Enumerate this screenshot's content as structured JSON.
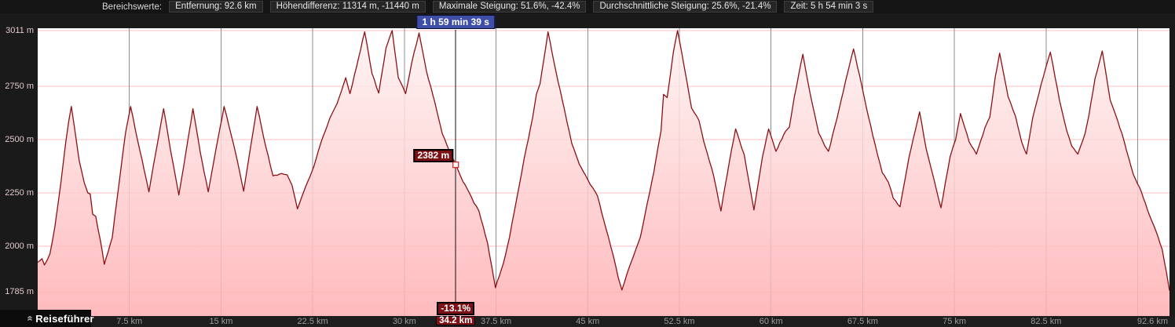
{
  "header": {
    "section_label": "Bereichswerte:",
    "metrics": [
      {
        "id": "entfernung",
        "label": "Entfernung",
        "value": "92.6 km"
      },
      {
        "id": "hoehendifferenz",
        "label": "Höhendifferenz",
        "value": "11314 m, -11440 m"
      },
      {
        "id": "maximale-steigung",
        "label": "Maximale Steigung",
        "value": "51.6%, -42.4%"
      },
      {
        "id": "durchschnittliche-steigung",
        "label": "Durchschnittliche Steigung",
        "value": "25.6%, -21.4%"
      },
      {
        "id": "zeit",
        "label": "Zeit",
        "value": "5 h 54 min 3 s"
      }
    ]
  },
  "cursor": {
    "km": 34.2,
    "elevation_m": 2382,
    "time_label": "1 h 59 min 39 s",
    "elevation_label": "2382 m",
    "gradient_label": "-13.1%",
    "distance_label": "34.2 km"
  },
  "guide_button": {
    "label": "Reiseführer"
  },
  "icons": {
    "chevron_double_up": "»"
  },
  "colors": {
    "line": "#8c1114",
    "fill_top": "#fdf3f3",
    "fill_mid": "#fed2d3",
    "fill_bottom": "#ffaeb2",
    "grid_pink": "#ffbfbf",
    "grid_gray": "#8f8f8f",
    "tooltip_blue": "#3f4fa8",
    "tag_red": "#7c1216",
    "plot_bg": "#ffffff",
    "panel_bg": "#1a1a1a",
    "axis_text": "#9c9c9c",
    "y_axis_text": "#e2c9c9",
    "cursor_marker": "#d42a2a"
  },
  "chart_data": {
    "type": "area",
    "title": "Höhenprofil",
    "xlabel": "km",
    "ylabel": "m",
    "xlim": [
      0,
      92.6
    ],
    "ylim": [
      1785,
      3011
    ],
    "grid": "horizontal pink elevation lines, vertical gray distance lines",
    "legend_position": "none",
    "y_ticks": [
      {
        "m": 3011,
        "label": "3011 m"
      },
      {
        "m": 2750,
        "label": "2750 m"
      },
      {
        "m": 2500,
        "label": "2500 m"
      },
      {
        "m": 2250,
        "label": "2250 m"
      },
      {
        "m": 2000,
        "label": "2000 m"
      },
      {
        "m": 1785,
        "label": "1785 m"
      }
    ],
    "x_ticks": [
      {
        "km": 7.5,
        "label": "7.5 km"
      },
      {
        "km": 15,
        "label": "15 km"
      },
      {
        "km": 22.5,
        "label": "22.5 km"
      },
      {
        "km": 30,
        "label": "30 km"
      },
      {
        "km": 37.5,
        "label": "37.5 km"
      },
      {
        "km": 45,
        "label": "45 km"
      },
      {
        "km": 52.5,
        "label": "52.5 km"
      },
      {
        "km": 60,
        "label": "60 km"
      },
      {
        "km": 67.5,
        "label": "67.5 km"
      },
      {
        "km": 75,
        "label": "75 km"
      },
      {
        "km": 82.5,
        "label": "82.5 km"
      },
      {
        "km": 90,
        "label": ""
      },
      {
        "km": 92.6,
        "label": "92.6 km",
        "align": "end"
      }
    ],
    "profile": [
      [
        0.0,
        1925
      ],
      [
        0.35,
        1942
      ],
      [
        0.55,
        1912
      ],
      [
        1.0,
        1965
      ],
      [
        1.4,
        2090
      ],
      [
        1.9,
        2300
      ],
      [
        2.3,
        2490
      ],
      [
        2.55,
        2590
      ],
      [
        2.75,
        2655
      ],
      [
        3.0,
        2560
      ],
      [
        3.4,
        2400
      ],
      [
        3.8,
        2300
      ],
      [
        4.1,
        2250
      ],
      [
        4.3,
        2245
      ],
      [
        4.5,
        2150
      ],
      [
        4.75,
        2140
      ],
      [
        5.1,
        2035
      ],
      [
        5.45,
        1915
      ],
      [
        6.1,
        2040
      ],
      [
        6.7,
        2315
      ],
      [
        7.2,
        2535
      ],
      [
        7.6,
        2655
      ],
      [
        8.2,
        2490
      ],
      [
        8.7,
        2360
      ],
      [
        9.1,
        2255
      ],
      [
        9.7,
        2450
      ],
      [
        10.3,
        2645
      ],
      [
        10.9,
        2440
      ],
      [
        11.55,
        2240
      ],
      [
        12.15,
        2450
      ],
      [
        12.7,
        2645
      ],
      [
        13.3,
        2440
      ],
      [
        13.95,
        2255
      ],
      [
        14.6,
        2460
      ],
      [
        15.25,
        2655
      ],
      [
        16.2,
        2435
      ],
      [
        16.85,
        2258
      ],
      [
        17.4,
        2460
      ],
      [
        17.95,
        2655
      ],
      [
        18.65,
        2470
      ],
      [
        19.25,
        2330
      ],
      [
        19.95,
        2341
      ],
      [
        20.4,
        2335
      ],
      [
        20.8,
        2287
      ],
      [
        21.25,
        2175
      ],
      [
        21.6,
        2230
      ],
      [
        21.9,
        2276
      ],
      [
        22.3,
        2330
      ],
      [
        22.6,
        2375
      ],
      [
        23.2,
        2490
      ],
      [
        23.9,
        2600
      ],
      [
        24.5,
        2670
      ],
      [
        25.2,
        2790
      ],
      [
        25.55,
        2715
      ],
      [
        26.1,
        2845
      ],
      [
        26.75,
        3005
      ],
      [
        27.35,
        2810
      ],
      [
        27.9,
        2718
      ],
      [
        28.5,
        2930
      ],
      [
        29.0,
        3011
      ],
      [
        29.5,
        2790
      ],
      [
        30.1,
        2715
      ],
      [
        30.6,
        2860
      ],
      [
        31.2,
        3000
      ],
      [
        31.8,
        2822
      ],
      [
        32.5,
        2672
      ],
      [
        33.1,
        2528
      ],
      [
        33.7,
        2442
      ],
      [
        34.2,
        2382
      ],
      [
        34.8,
        2302
      ],
      [
        35.3,
        2252
      ],
      [
        35.7,
        2202
      ],
      [
        36.1,
        2165
      ],
      [
        36.8,
        2016
      ],
      [
        37.15,
        1905
      ],
      [
        37.45,
        1805
      ],
      [
        38.1,
        1920
      ],
      [
        38.6,
        2042
      ],
      [
        39.2,
        2225
      ],
      [
        39.8,
        2410
      ],
      [
        40.5,
        2604
      ],
      [
        40.8,
        2712
      ],
      [
        41.1,
        2762
      ],
      [
        41.75,
        3005
      ],
      [
        42.4,
        2820
      ],
      [
        43.1,
        2640
      ],
      [
        43.7,
        2482
      ],
      [
        44.3,
        2386
      ],
      [
        45.0,
        2312
      ],
      [
        45.8,
        2236
      ],
      [
        46.5,
        2082
      ],
      [
        47.1,
        1955
      ],
      [
        47.5,
        1852
      ],
      [
        47.8,
        1795
      ],
      [
        48.4,
        1902
      ],
      [
        49.3,
        2042
      ],
      [
        49.7,
        2152
      ],
      [
        50.4,
        2345
      ],
      [
        51.0,
        2540
      ],
      [
        51.2,
        2712
      ],
      [
        51.5,
        2697
      ],
      [
        52.0,
        2907
      ],
      [
        52.35,
        3011
      ],
      [
        52.9,
        2840
      ],
      [
        53.5,
        2648
      ],
      [
        54.1,
        2590
      ],
      [
        54.5,
        2490
      ],
      [
        54.8,
        2432
      ],
      [
        55.3,
        2330
      ],
      [
        55.9,
        2165
      ],
      [
        56.6,
        2400
      ],
      [
        57.1,
        2550
      ],
      [
        57.8,
        2430
      ],
      [
        58.2,
        2300
      ],
      [
        58.6,
        2170
      ],
      [
        59.3,
        2420
      ],
      [
        59.8,
        2550
      ],
      [
        60.15,
        2490
      ],
      [
        60.4,
        2445
      ],
      [
        61.2,
        2540
      ],
      [
        61.5,
        2558
      ],
      [
        61.9,
        2700
      ],
      [
        62.6,
        2900
      ],
      [
        63.2,
        2715
      ],
      [
        63.9,
        2530
      ],
      [
        64.4,
        2470
      ],
      [
        64.7,
        2445
      ],
      [
        65.4,
        2600
      ],
      [
        66.1,
        2775
      ],
      [
        66.75,
        2925
      ],
      [
        67.4,
        2760
      ],
      [
        67.8,
        2650
      ],
      [
        68.5,
        2480
      ],
      [
        69.1,
        2345
      ],
      [
        69.6,
        2300
      ],
      [
        70.0,
        2225
      ],
      [
        70.55,
        2185
      ],
      [
        71.3,
        2420
      ],
      [
        72.15,
        2630
      ],
      [
        72.7,
        2455
      ],
      [
        73.3,
        2320
      ],
      [
        73.9,
        2180
      ],
      [
        74.65,
        2420
      ],
      [
        75.1,
        2500
      ],
      [
        75.5,
        2622
      ],
      [
        76.2,
        2490
      ],
      [
        76.8,
        2432
      ],
      [
        77.5,
        2555
      ],
      [
        77.9,
        2605
      ],
      [
        78.35,
        2795
      ],
      [
        78.7,
        2905
      ],
      [
        79.4,
        2700
      ],
      [
        80.0,
        2610
      ],
      [
        80.5,
        2490
      ],
      [
        80.9,
        2432
      ],
      [
        81.4,
        2600
      ],
      [
        82.1,
        2760
      ],
      [
        82.85,
        2910
      ],
      [
        83.6,
        2685
      ],
      [
        84.2,
        2540
      ],
      [
        84.6,
        2470
      ],
      [
        85.1,
        2432
      ],
      [
        85.7,
        2530
      ],
      [
        86.0,
        2612
      ],
      [
        86.5,
        2785
      ],
      [
        87.1,
        2915
      ],
      [
        87.75,
        2685
      ],
      [
        88.35,
        2590
      ],
      [
        88.9,
        2490
      ],
      [
        89.65,
        2335
      ],
      [
        90.3,
        2255
      ],
      [
        90.8,
        2170
      ],
      [
        91.5,
        2070
      ],
      [
        92.0,
        1985
      ],
      [
        92.35,
        1878
      ],
      [
        92.6,
        1792
      ]
    ]
  }
}
